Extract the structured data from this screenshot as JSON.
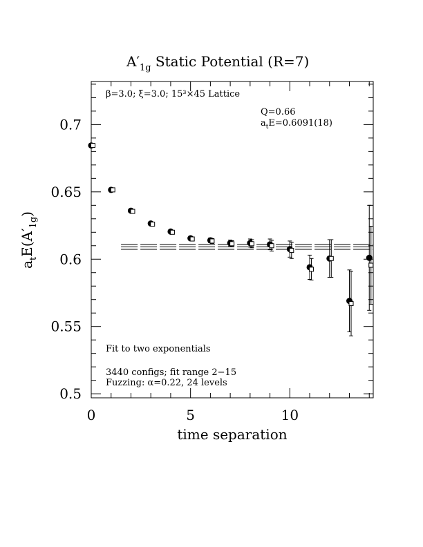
{
  "chart_data": {
    "type": "scatter",
    "title": "A′1g Static Potential (R=7)",
    "title_main": "A′",
    "title_sub": "1g",
    "title_rest": " Static Potential (R=7)",
    "xlabel": "time separation",
    "ylabel_main": "a",
    "ylabel_sub1": "t",
    "ylabel_mid": "E(A′",
    "ylabel_sub2": "1g",
    "ylabel_end": ")",
    "xlim": [
      0,
      14.2
    ],
    "ylim": [
      0.497,
      0.732
    ],
    "x_ticks": [
      0,
      5,
      10
    ],
    "x_tick_labels": [
      "0",
      "5",
      "10"
    ],
    "y_ticks": [
      0.5,
      0.55,
      0.6,
      0.65,
      0.7
    ],
    "y_tick_labels": [
      "0.5",
      "0.55",
      "0.6",
      "0.65",
      "0.7"
    ],
    "grid": false,
    "annotations": {
      "lattice_text": "β=3.0; ξ=3.0; 15³×45 Lattice",
      "q_text": "Q=0.66",
      "energy_main": "a",
      "energy_sub": "t",
      "energy_rest": "E=0.6091(18)",
      "fit_text": "Fit to two exponentials",
      "configs_text": "3440 configs; fit range 2−15",
      "fuzz_text": "Fuzzing: α=0.22, 24 levels"
    },
    "fit": {
      "x_start": 1.5,
      "x_end": 14.2,
      "value": 0.6091,
      "error": 0.0018
    },
    "series": [
      {
        "marker": "filled-circle",
        "points": [
          {
            "x": 0,
            "y": 0.6845,
            "err": 0.0005
          },
          {
            "x": 1,
            "y": 0.6515,
            "err": 0.0006
          },
          {
            "x": 2,
            "y": 0.636,
            "err": 0.0008
          },
          {
            "x": 3,
            "y": 0.6265,
            "err": 0.001
          },
          {
            "x": 4,
            "y": 0.6205,
            "err": 0.0012
          },
          {
            "x": 5,
            "y": 0.6155,
            "err": 0.0015
          },
          {
            "x": 6,
            "y": 0.614,
            "err": 0.0018
          },
          {
            "x": 7,
            "y": 0.612,
            "err": 0.0022
          },
          {
            "x": 8,
            "y": 0.612,
            "err": 0.003
          },
          {
            "x": 9,
            "y": 0.611,
            "err": 0.004
          },
          {
            "x": 10,
            "y": 0.6075,
            "err": 0.006
          },
          {
            "x": 11,
            "y": 0.594,
            "err": 0.009
          },
          {
            "x": 12,
            "y": 0.6005,
            "err": 0.014
          },
          {
            "x": 13,
            "y": 0.569,
            "err": 0.023
          },
          {
            "x": 14,
            "y": 0.601,
            "err": 0.039
          }
        ]
      },
      {
        "marker": "open-square",
        "points": [
          {
            "x": 0,
            "y": 0.6845,
            "err": 0.0005
          },
          {
            "x": 1,
            "y": 0.6515,
            "err": 0.0006
          },
          {
            "x": 2,
            "y": 0.6355,
            "err": 0.0008
          },
          {
            "x": 3,
            "y": 0.626,
            "err": 0.001
          },
          {
            "x": 4,
            "y": 0.62,
            "err": 0.0012
          },
          {
            "x": 5,
            "y": 0.615,
            "err": 0.0015
          },
          {
            "x": 6,
            "y": 0.6135,
            "err": 0.0018
          },
          {
            "x": 7,
            "y": 0.6115,
            "err": 0.0022
          },
          {
            "x": 8,
            "y": 0.6115,
            "err": 0.003
          },
          {
            "x": 9,
            "y": 0.61,
            "err": 0.004
          },
          {
            "x": 10,
            "y": 0.6065,
            "err": 0.006
          },
          {
            "x": 11,
            "y": 0.5925,
            "err": 0.008
          },
          {
            "x": 12,
            "y": 0.6005,
            "err": 0.014
          },
          {
            "x": 13,
            "y": 0.567,
            "err": 0.024
          },
          {
            "x": 14,
            "y": 0.5955,
            "err": 0.029
          }
        ]
      }
    ]
  }
}
